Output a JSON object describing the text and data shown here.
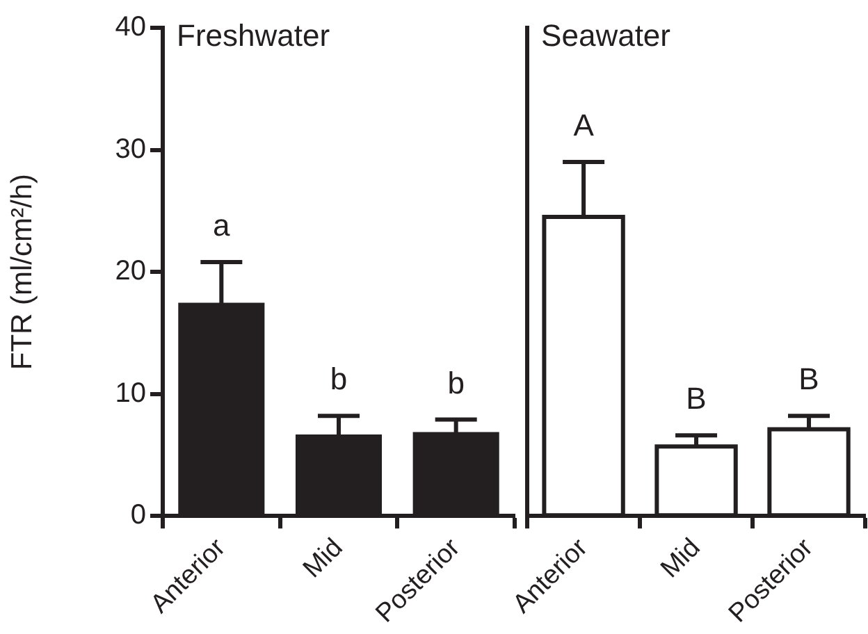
{
  "chart_data": [
    {
      "type": "bar",
      "title": "Freshwater",
      "ylabel": "FTR (ml/cm²/h)",
      "categories": [
        "Anterior",
        "Mid",
        "Posterior"
      ],
      "series": [
        {
          "color": "#231f20",
          "values": [
            17.3,
            6.5,
            6.7
          ],
          "errors": [
            [
              17.3,
              20.8
            ],
            [
              6.5,
              8.2
            ],
            [
              6.7,
              7.9
            ]
          ]
        }
      ],
      "ylim": [
        0,
        40
      ],
      "yticks": [
        0,
        10,
        20,
        30,
        40
      ],
      "annotations": [
        "a",
        "b",
        "b"
      ]
    },
    {
      "type": "bar",
      "title": "Seawater",
      "categories": [
        "Anterior",
        "Mid",
        "Posterior"
      ],
      "series": [
        {
          "color": "#ffffff",
          "values": [
            24.5,
            5.7,
            7.1
          ],
          "errors": [
            [
              24.5,
              29.0
            ],
            [
              5.7,
              6.6
            ],
            [
              7.1,
              8.2
            ]
          ]
        }
      ],
      "ylim": [
        0,
        40
      ],
      "yticks": [
        0,
        10,
        20,
        30,
        40
      ],
      "tick_labels": "x",
      "annotations": [
        "A",
        "B",
        "B"
      ]
    }
  ]
}
